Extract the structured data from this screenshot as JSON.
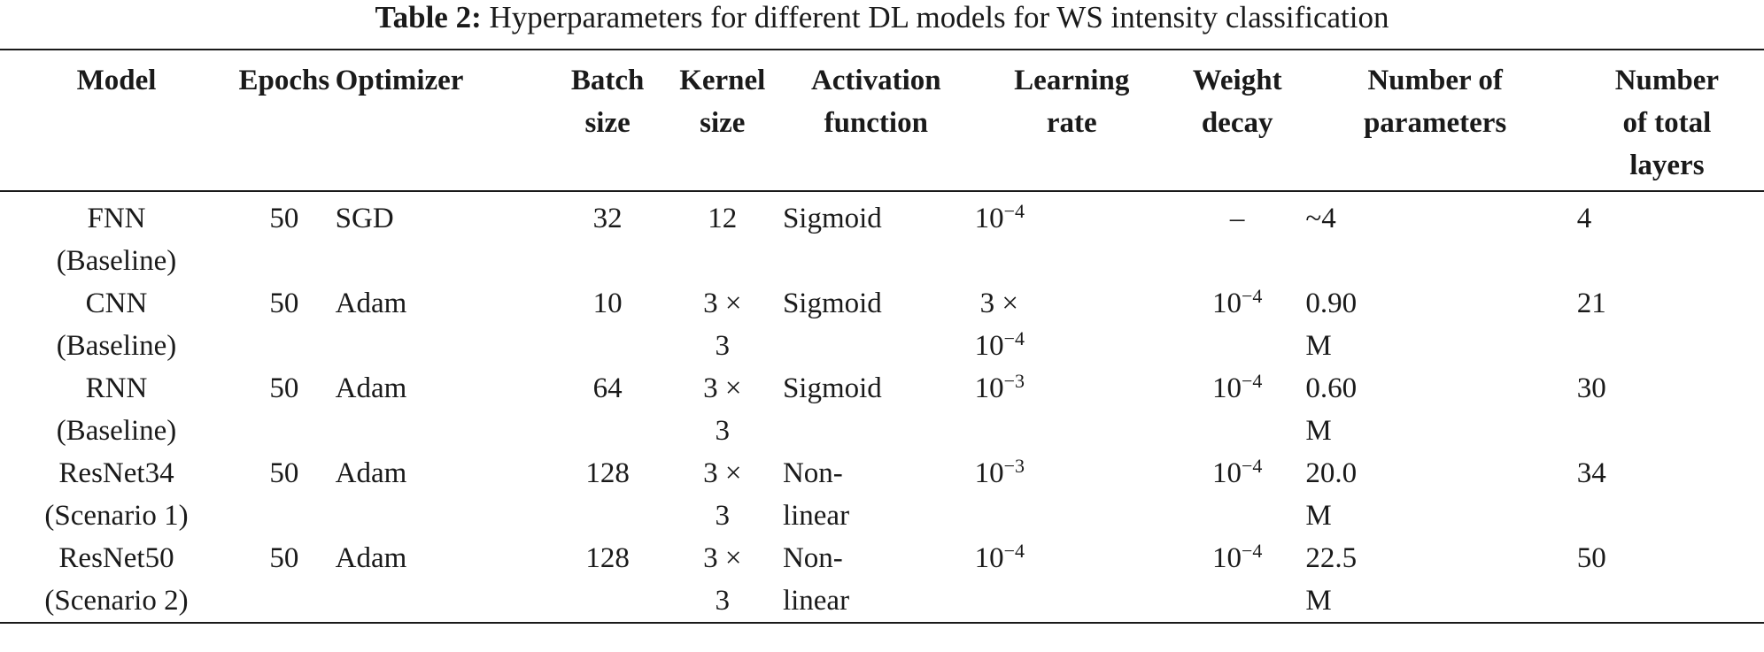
{
  "caption": {
    "label": "Table 2:",
    "text": " Hyperparameters for different DL models for WS intensity classification"
  },
  "headers": [
    [
      "Model"
    ],
    [
      "Epochs"
    ],
    [
      "Optimizer"
    ],
    [
      "Batch",
      "size"
    ],
    [
      "Kernel",
      "size"
    ],
    [
      "Activation",
      "function"
    ],
    [
      "Learning",
      "rate"
    ],
    [
      "Weight",
      "decay"
    ],
    [
      "Number of",
      "parameters"
    ],
    [
      "Number",
      "of total",
      "layers"
    ]
  ],
  "rows": [
    {
      "model": [
        "FNN",
        "(Baseline)"
      ],
      "epochs": "50",
      "optimizer": "SGD",
      "batch": "32",
      "kernel": [
        "12"
      ],
      "activation": [
        "Sigmoid"
      ],
      "lr": [
        {
          "base": "10",
          "exp": "−4"
        }
      ],
      "wd": {
        "dash": "–"
      },
      "params": [
        "~4"
      ],
      "layers": "4"
    },
    {
      "model": [
        "CNN",
        "(Baseline)"
      ],
      "epochs": "50",
      "optimizer": "Adam",
      "batch": "10",
      "kernel": [
        "3 ×",
        "3"
      ],
      "activation": [
        "Sigmoid"
      ],
      "lr": [
        {
          "pre": "3 ×"
        },
        {
          "base": "10",
          "exp": "−4"
        }
      ],
      "wd": {
        "base": "10",
        "exp": "−4"
      },
      "params": [
        "0.90",
        "M"
      ],
      "layers": "21"
    },
    {
      "model": [
        "RNN",
        "(Baseline)"
      ],
      "epochs": "50",
      "optimizer": "Adam",
      "batch": "64",
      "kernel": [
        "3 ×",
        "3"
      ],
      "activation": [
        "Sigmoid"
      ],
      "lr": [
        {
          "base": "10",
          "exp": "−3"
        }
      ],
      "wd": {
        "base": "10",
        "exp": "−4"
      },
      "params": [
        "0.60",
        "M"
      ],
      "layers": "30"
    },
    {
      "model": [
        "ResNet34",
        "(Scenario 1)"
      ],
      "epochs": "50",
      "optimizer": "Adam",
      "batch": "128",
      "kernel": [
        "3 ×",
        "3"
      ],
      "activation": [
        "Non-",
        "linear"
      ],
      "lr": [
        {
          "base": "10",
          "exp": "−3"
        }
      ],
      "wd": {
        "base": "10",
        "exp": "−4"
      },
      "params": [
        "20.0",
        "M"
      ],
      "layers": "34"
    },
    {
      "model": [
        "ResNet50",
        "(Scenario 2)"
      ],
      "epochs": "50",
      "optimizer": "Adam",
      "batch": "128",
      "kernel": [
        "3 ×",
        "3"
      ],
      "activation": [
        "Non-",
        "linear"
      ],
      "lr": [
        {
          "base": "10",
          "exp": "−4"
        }
      ],
      "wd": {
        "base": "10",
        "exp": "−4"
      },
      "params": [
        "22.5",
        "M"
      ],
      "layers": "50"
    }
  ]
}
